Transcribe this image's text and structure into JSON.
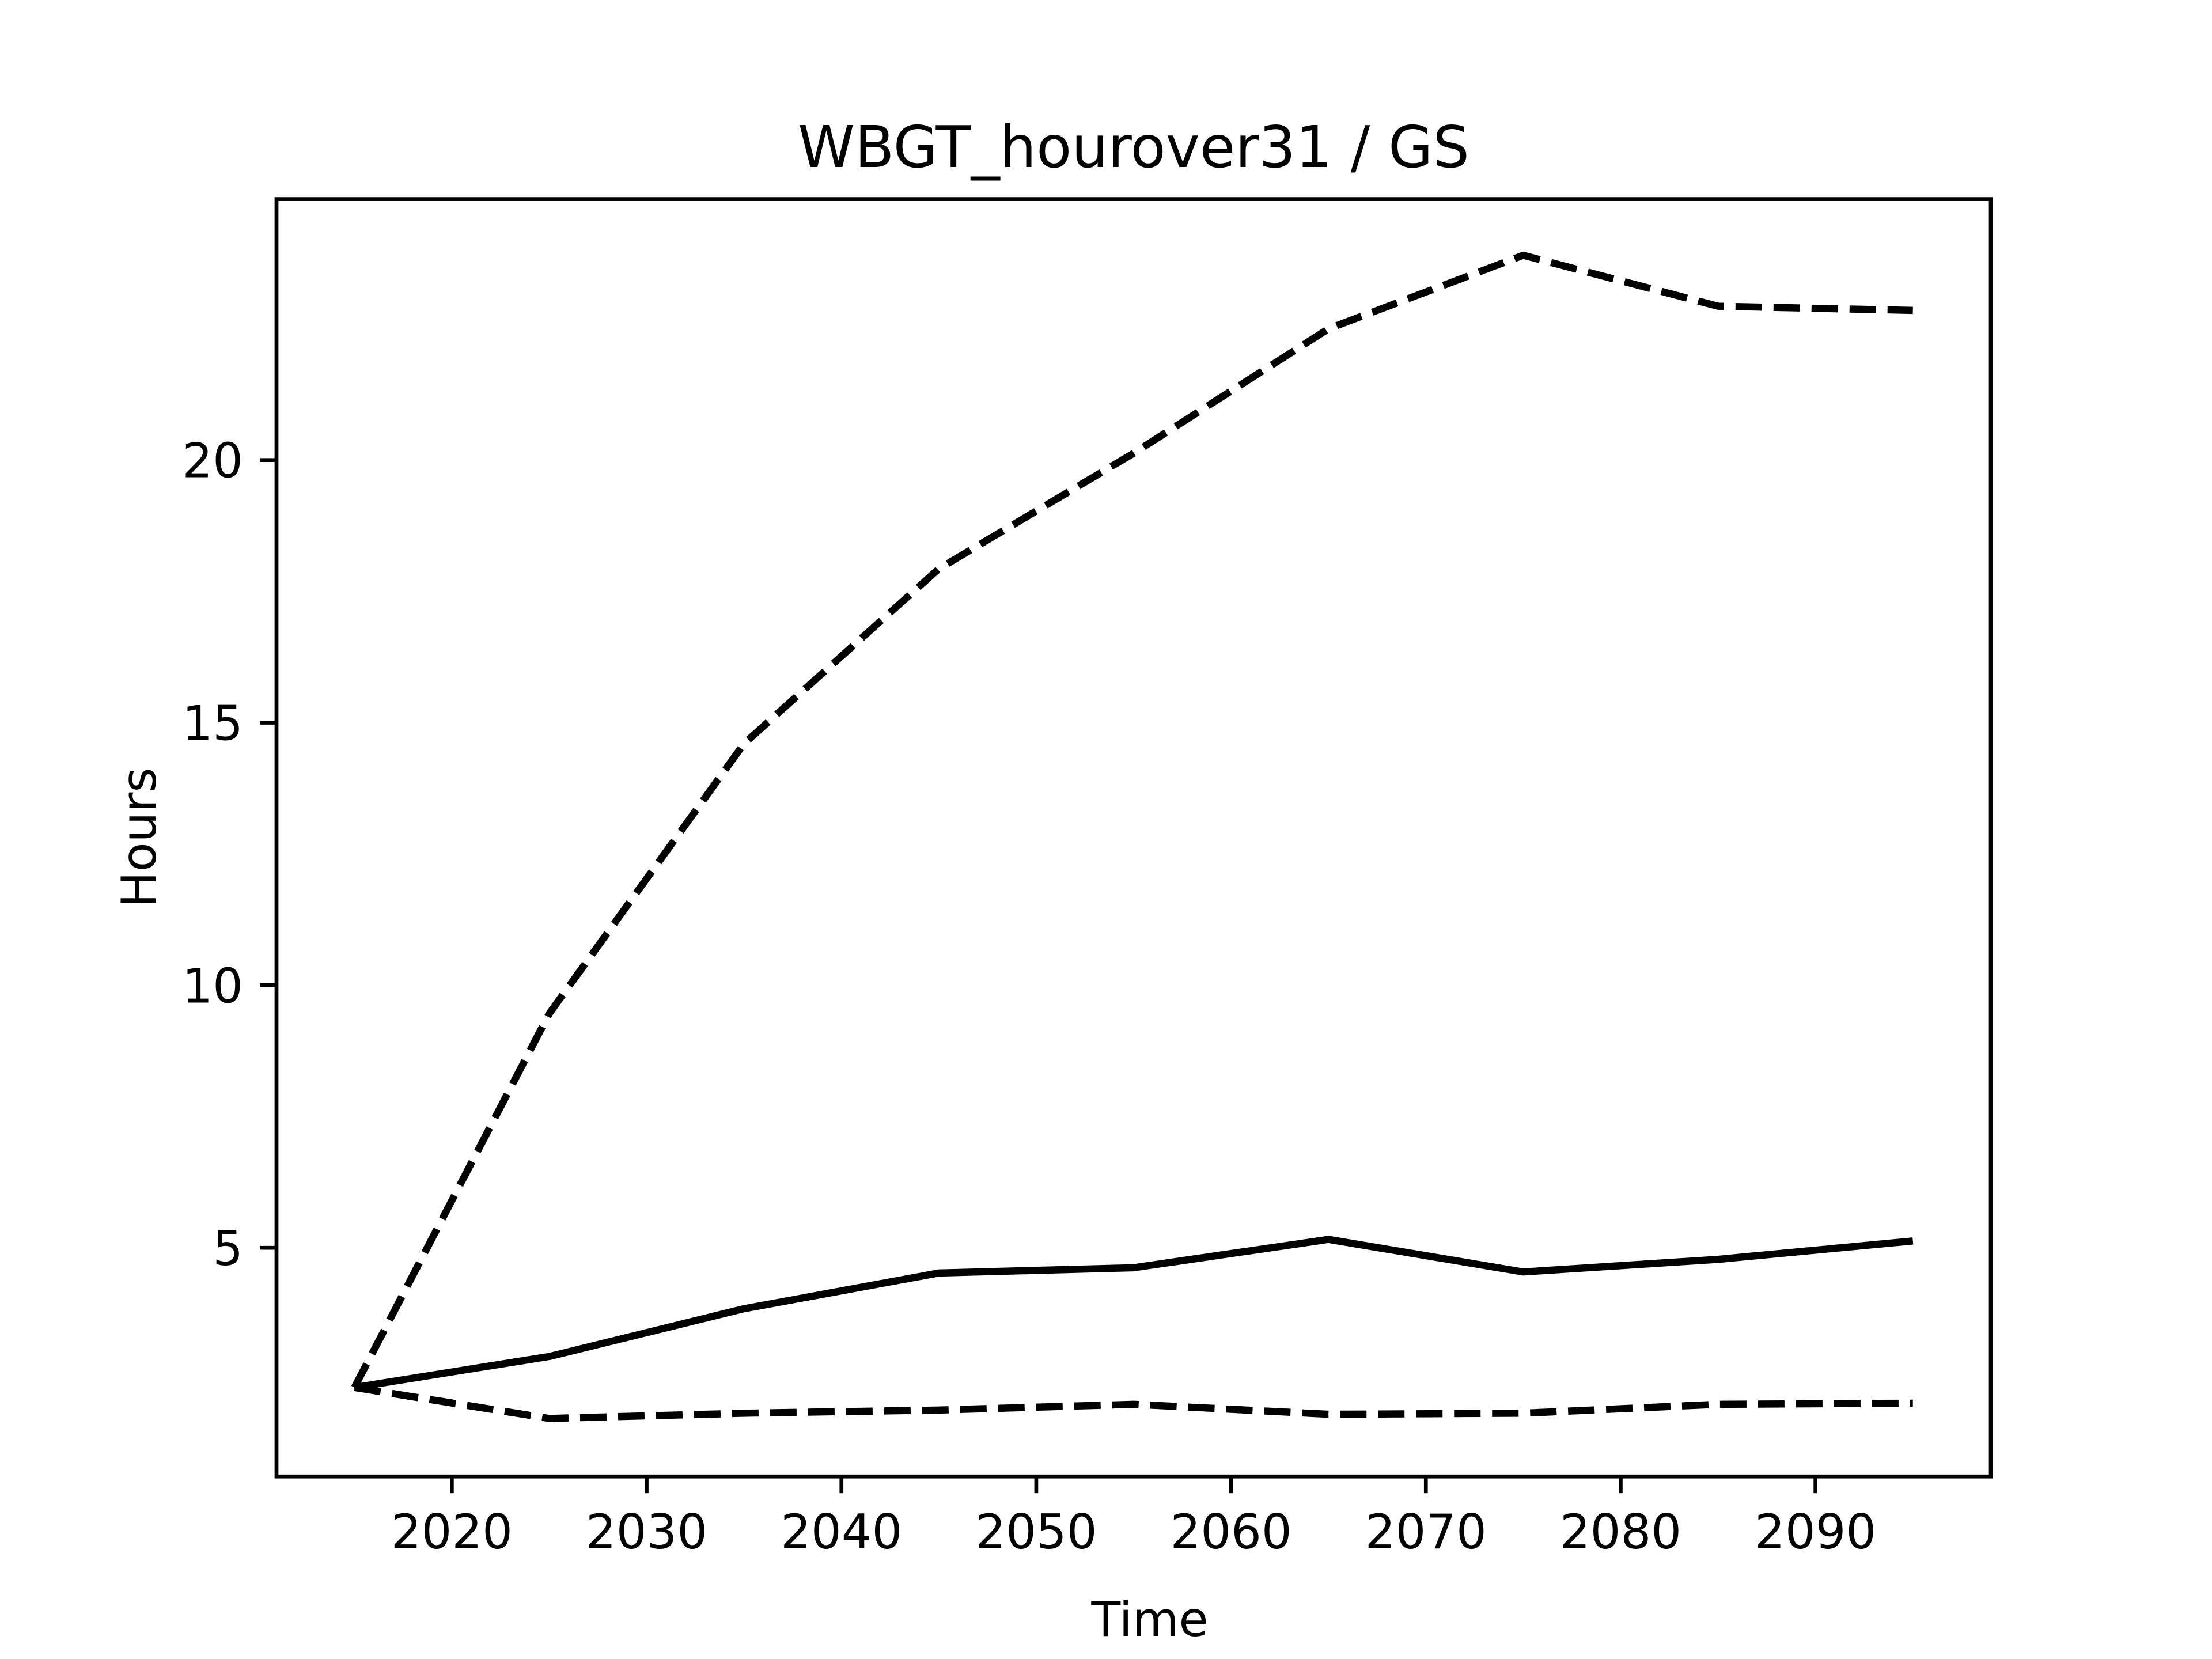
{
  "chart_data": {
    "type": "line",
    "title": "WBGT_hourover31 / GS",
    "x_label": "Time",
    "y_label": "Hours",
    "x": [
      2015,
      2025,
      2035,
      2045,
      2055,
      2065,
      2075,
      2085,
      2095
    ],
    "series": [
      {
        "color": "#000000",
        "dash": "solid",
        "values": [
          2.34,
          2.93,
          3.84,
          4.52,
          4.62,
          5.16,
          4.54,
          4.78,
          5.13
        ]
      },
      {
        "color": "#000000",
        "dash": "dashed",
        "values": [
          2.34,
          9.46,
          14.6,
          17.93,
          20.13,
          22.5,
          23.9,
          22.93,
          22.85
        ]
      },
      {
        "color": "#000000",
        "dash": "dashed",
        "values": [
          2.34,
          1.75,
          1.85,
          1.91,
          2.02,
          1.83,
          1.85,
          2.02,
          2.04
        ]
      }
    ],
    "xlim": [
      2011,
      2099
    ],
    "ylim": [
      0.645,
      24.97
    ],
    "xticks": [
      2020,
      2030,
      2040,
      2050,
      2060,
      2070,
      2080,
      2090
    ],
    "yticks": [
      5,
      10,
      15,
      20
    ],
    "grid": false
  }
}
